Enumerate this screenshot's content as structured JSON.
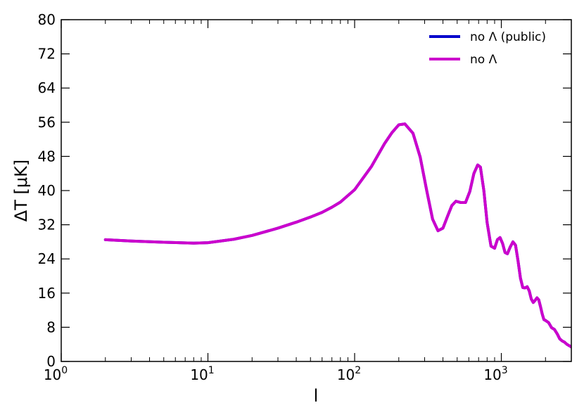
{
  "chart_data": {
    "type": "line",
    "xscale": "log",
    "xlim": [
      1,
      3000
    ],
    "ylim": [
      0,
      80
    ],
    "xlabel": "l",
    "ylabel": "ΔT [μK]",
    "xticks": [
      {
        "value": 1,
        "base": "10",
        "exp": "0"
      },
      {
        "value": 10,
        "base": "10",
        "exp": "1"
      },
      {
        "value": 100,
        "base": "10",
        "exp": "2"
      },
      {
        "value": 1000,
        "base": "10",
        "exp": "3"
      }
    ],
    "yticks": [
      "0",
      "8",
      "16",
      "24",
      "32",
      "40",
      "48",
      "56",
      "64",
      "72",
      "80"
    ],
    "grid": false,
    "legend_position": "top-right",
    "series": [
      {
        "name": "no Λ (public)",
        "color": "#0000cc",
        "x": [
          2,
          3,
          5,
          8,
          10,
          15,
          20,
          30,
          40,
          50,
          60,
          70,
          80,
          100,
          130,
          160,
          180,
          200,
          220,
          250,
          280,
          310,
          340,
          370,
          400,
          430,
          460,
          490,
          530,
          570,
          610,
          650,
          690,
          720,
          760,
          800,
          850,
          900,
          940,
          980,
          1020,
          1060,
          1100,
          1150,
          1200,
          1250,
          1300,
          1350,
          1400,
          1450,
          1500,
          1550,
          1600,
          1650,
          1700,
          1750,
          1800,
          1850,
          1900,
          1950,
          2000,
          2100,
          2200,
          2300,
          2400,
          2500,
          2600,
          2700,
          2800,
          2900,
          3000
        ],
        "y": [
          28.5,
          28.2,
          27.9,
          27.7,
          27.8,
          28.6,
          29.5,
          31.2,
          32.6,
          33.8,
          34.9,
          36.1,
          37.3,
          40.2,
          45.6,
          51.0,
          53.6,
          55.4,
          55.6,
          53.4,
          47.8,
          40.0,
          33.3,
          30.6,
          31.2,
          34.0,
          36.5,
          37.5,
          37.2,
          37.2,
          39.8,
          44.0,
          46.0,
          45.5,
          40.0,
          32.5,
          27.0,
          26.5,
          28.5,
          29.0,
          27.6,
          25.5,
          25.2,
          26.8,
          28.0,
          27.2,
          23.5,
          19.5,
          17.3,
          17.2,
          17.5,
          16.5,
          14.6,
          13.8,
          14.3,
          14.9,
          14.4,
          12.8,
          11.1,
          9.8,
          9.6,
          9.1,
          7.9,
          7.5,
          6.5,
          5.3,
          4.8,
          4.5,
          4.0,
          3.7,
          3.4
        ]
      },
      {
        "name": "no Λ",
        "color": "#cc00cc",
        "x": [
          2,
          3,
          5,
          8,
          10,
          15,
          20,
          30,
          40,
          50,
          60,
          70,
          80,
          100,
          130,
          160,
          180,
          200,
          220,
          250,
          280,
          310,
          340,
          370,
          400,
          430,
          460,
          490,
          530,
          570,
          610,
          650,
          690,
          720,
          760,
          800,
          850,
          900,
          940,
          980,
          1020,
          1060,
          1100,
          1150,
          1200,
          1250,
          1300,
          1350,
          1400,
          1450,
          1500,
          1550,
          1600,
          1650,
          1700,
          1750,
          1800,
          1850,
          1900,
          1950,
          2000,
          2100,
          2200,
          2300,
          2400,
          2500,
          2600,
          2700,
          2800,
          2900,
          3000
        ],
        "y": [
          28.5,
          28.2,
          27.9,
          27.7,
          27.8,
          28.6,
          29.5,
          31.2,
          32.6,
          33.8,
          34.9,
          36.1,
          37.3,
          40.2,
          45.6,
          51.0,
          53.6,
          55.4,
          55.6,
          53.4,
          47.8,
          40.0,
          33.3,
          30.6,
          31.2,
          34.0,
          36.5,
          37.5,
          37.2,
          37.2,
          39.8,
          44.0,
          46.0,
          45.5,
          40.0,
          32.5,
          27.0,
          26.5,
          28.5,
          29.0,
          27.6,
          25.5,
          25.2,
          26.8,
          28.0,
          27.2,
          23.5,
          19.5,
          17.3,
          17.2,
          17.5,
          16.5,
          14.6,
          13.8,
          14.3,
          14.9,
          14.4,
          12.8,
          11.1,
          9.8,
          9.6,
          9.1,
          7.9,
          7.5,
          6.5,
          5.3,
          4.8,
          4.5,
          4.0,
          3.7,
          3.4
        ]
      }
    ]
  }
}
